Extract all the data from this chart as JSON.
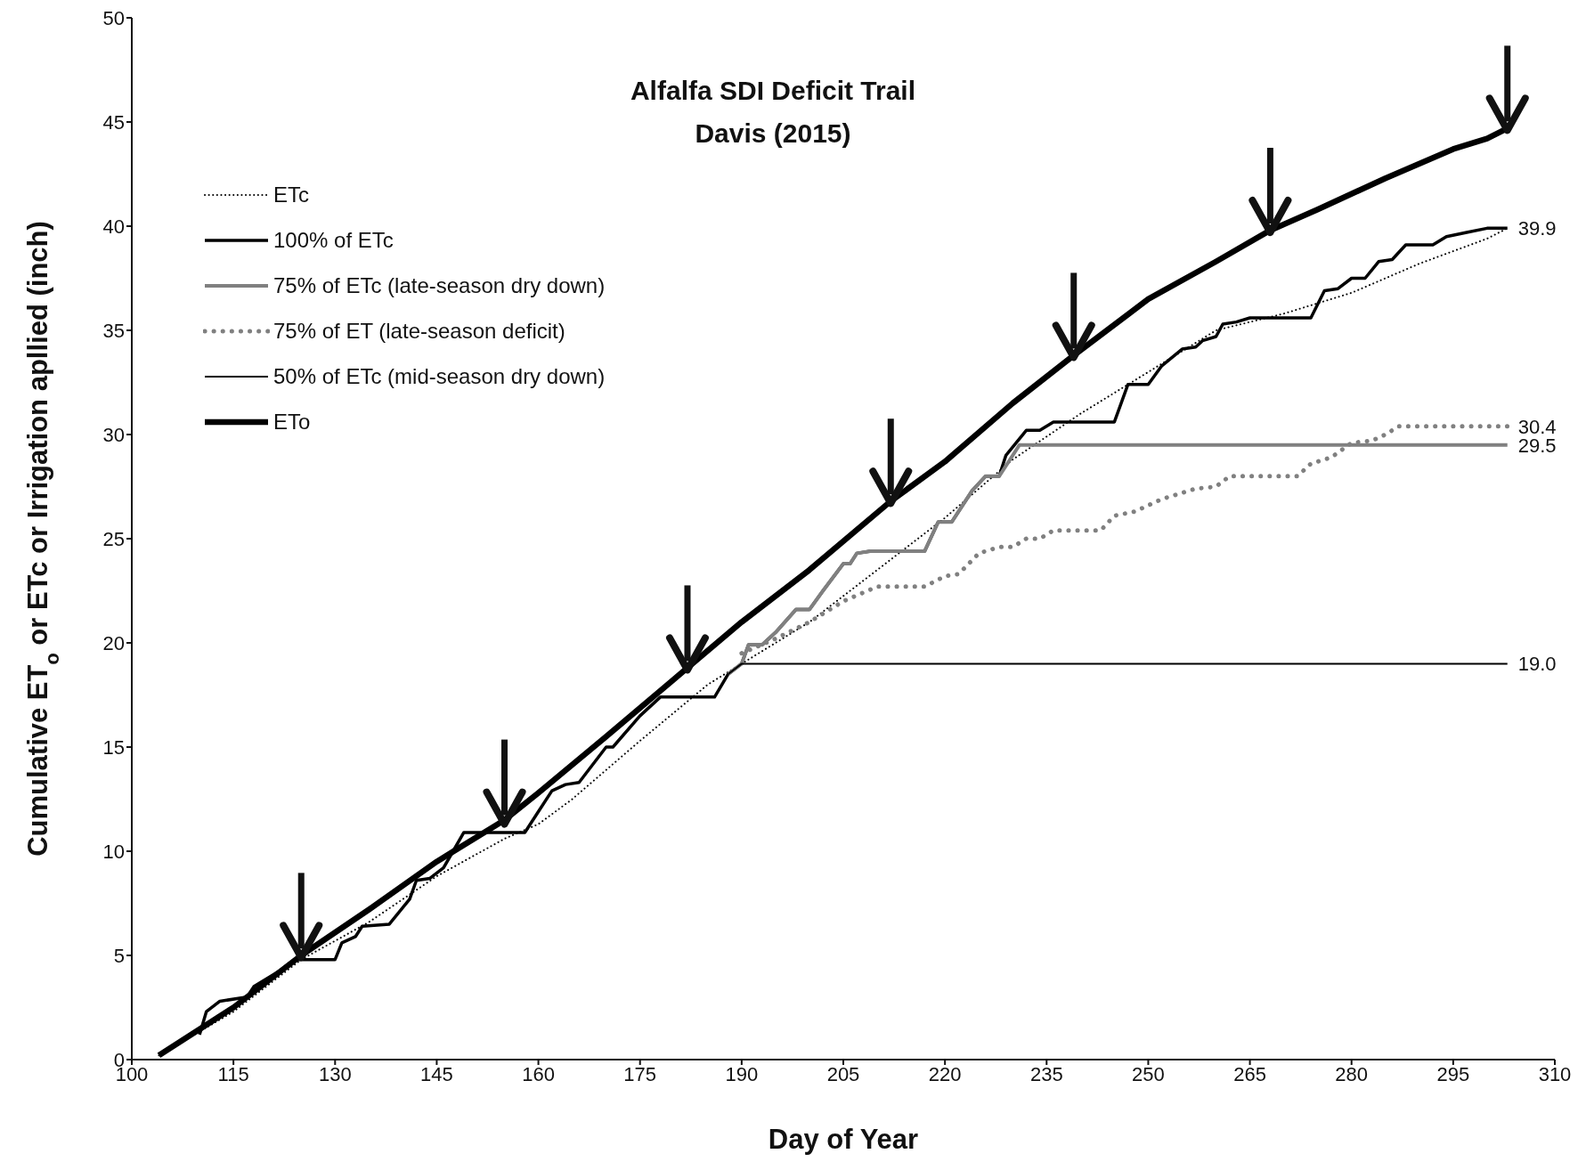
{
  "chart_data": {
    "type": "line",
    "title": "Alfalfa SDI Deficit Trail",
    "subtitle": "Davis (2015)",
    "xlabel": "Day of Year",
    "ylabel": "Cumulative ET$_{o}$ or ETc or Irrigation apllied (inch)",
    "xlim": [
      100,
      310
    ],
    "xticks": [
      100,
      115,
      130,
      145,
      160,
      175,
      190,
      205,
      220,
      235,
      250,
      265,
      280,
      295,
      310
    ],
    "ylim": [
      0,
      50
    ],
    "yticks": [
      0,
      5,
      10,
      15,
      20,
      25,
      30,
      35,
      40,
      45,
      50
    ],
    "legend": "top left",
    "marker": "none",
    "series": [
      {
        "name": "ETc",
        "color": "#000000",
        "line_style": "dotted",
        "x": [
          104,
          115,
          125,
          135,
          145,
          155,
          160,
          165,
          175,
          185,
          190,
          200,
          210,
          220,
          230,
          240,
          250,
          260,
          270,
          280,
          290,
          300,
          303
        ],
        "values": [
          0.2,
          2.3,
          4.8,
          6.6,
          8.8,
          10.6,
          11.3,
          12.5,
          15.3,
          18,
          19,
          21,
          23.5,
          26,
          28.8,
          31,
          33,
          35,
          35.8,
          36.8,
          38.2,
          39.4,
          39.9
        ]
      },
      {
        "name": "100% of ETc",
        "color": "#000000",
        "line_style": "solid",
        "x": [
          110,
          111,
          113,
          117,
          118,
          122,
          124,
          130,
          131,
          133,
          134,
          138,
          141,
          142,
          144,
          146,
          149,
          158,
          160,
          162,
          164,
          166,
          170,
          171,
          175,
          178,
          186,
          188,
          190,
          191,
          193,
          195,
          198,
          200,
          202,
          205,
          206,
          207,
          209,
          217,
          219,
          221,
          224,
          226,
          228,
          229,
          232,
          234,
          236,
          245,
          247,
          250,
          252,
          255,
          257,
          258,
          260,
          261,
          263,
          265,
          274,
          276,
          278,
          280,
          282,
          284,
          286,
          288,
          292,
          294,
          297,
          300,
          303
        ],
        "values": [
          1.2,
          2.3,
          2.8,
          3,
          3.5,
          4.3,
          4.8,
          4.8,
          5.6,
          5.9,
          6.4,
          6.5,
          7.7,
          8.6,
          8.7,
          9.2,
          10.9,
          10.9,
          11.9,
          12.9,
          13.2,
          13.3,
          15,
          15,
          16.5,
          17.4,
          17.4,
          18.5,
          19,
          19.9,
          19.9,
          20.5,
          21.6,
          21.6,
          22.5,
          23.8,
          23.8,
          24.3,
          24.4,
          24.4,
          25.8,
          25.8,
          27.3,
          28,
          28,
          29,
          30.2,
          30.2,
          30.6,
          30.6,
          32.4,
          32.4,
          33.3,
          34.1,
          34.2,
          34.5,
          34.7,
          35.3,
          35.4,
          35.6,
          35.6,
          36.9,
          37,
          37.5,
          37.5,
          38.3,
          38.4,
          39.1,
          39.1,
          39.5,
          39.7,
          39.9,
          39.9
        ],
        "value_labels": [
          null,
          null,
          null,
          null,
          null,
          null,
          null,
          null,
          null,
          null,
          null,
          null,
          null,
          null,
          null,
          null,
          null,
          null,
          null,
          null,
          null,
          null,
          null,
          null,
          null,
          null,
          null,
          null,
          null,
          null,
          null,
          null,
          null,
          null,
          null,
          null,
          null,
          null,
          null,
          null,
          null,
          null,
          null,
          null,
          null,
          null,
          null,
          null,
          null,
          null,
          null,
          null,
          null,
          null,
          null,
          null,
          null,
          null,
          null,
          null,
          null,
          null,
          null,
          null,
          null,
          null,
          null,
          null,
          null,
          null,
          null,
          null,
          "39.9"
        ]
      },
      {
        "name": "75% of ETc (late-season dry down)",
        "color": "#808080",
        "line_style": "solid",
        "x": [
          188,
          190,
          191,
          193,
          195,
          198,
          200,
          202,
          205,
          206,
          207,
          209,
          217,
          219,
          221,
          224,
          226,
          228,
          231,
          303
        ],
        "values": [
          18.5,
          19,
          19.9,
          19.9,
          20.5,
          21.6,
          21.6,
          22.5,
          23.8,
          23.8,
          24.3,
          24.4,
          24.4,
          25.8,
          25.8,
          27.3,
          28,
          28,
          29.5,
          29.5
        ],
        "value_labels": [
          null,
          null,
          null,
          null,
          null,
          null,
          null,
          null,
          null,
          null,
          null,
          null,
          null,
          null,
          null,
          null,
          null,
          null,
          null,
          "29.5"
        ]
      },
      {
        "name": "75% of ET (late-season deficit)",
        "color": "#808080",
        "line_style": "dotted",
        "x": [
          190,
          195,
          200,
          205,
          210,
          217,
          220,
          222,
          225,
          228,
          230,
          232,
          234,
          236,
          243,
          245,
          248,
          252,
          257,
          260,
          262,
          272,
          274,
          277,
          280,
          283,
          285,
          287,
          303
        ],
        "values": [
          19.5,
          20.2,
          21,
          22,
          22.7,
          22.7,
          23.2,
          23.3,
          24.3,
          24.6,
          24.6,
          25,
          25,
          25.4,
          25.4,
          26.1,
          26.3,
          26.9,
          27.4,
          27.5,
          28,
          28,
          28.6,
          28.9,
          29.6,
          29.7,
          30,
          30.4,
          30.4
        ],
        "value_labels": [
          null,
          null,
          null,
          null,
          null,
          null,
          null,
          null,
          null,
          null,
          null,
          null,
          null,
          null,
          null,
          null,
          null,
          null,
          null,
          null,
          null,
          null,
          null,
          null,
          null,
          null,
          null,
          null,
          "30.4"
        ]
      },
      {
        "name": "50% of ETc (mid-season dry down)",
        "color": "#000000",
        "line_style": "solid",
        "x": [
          188,
          190,
          303
        ],
        "values": [
          18.5,
          19,
          19
        ],
        "value_labels": [
          null,
          null,
          "19.0"
        ]
      },
      {
        "name": "ETo",
        "color": "#000000",
        "line_style": "solid",
        "x": [
          104,
          115,
          125,
          135,
          145,
          155,
          160,
          170,
          182,
          190,
          200,
          212,
          220,
          230,
          239,
          250,
          260,
          268,
          275,
          285,
          295,
          300,
          303
        ],
        "values": [
          0.2,
          2.5,
          5,
          7.2,
          9.5,
          11.5,
          12.8,
          15.5,
          18.8,
          21,
          23.5,
          26.8,
          28.7,
          31.5,
          33.8,
          36.5,
          38.3,
          39.8,
          40.8,
          42.3,
          43.7,
          44.2,
          44.7
        ]
      }
    ]
  }
}
